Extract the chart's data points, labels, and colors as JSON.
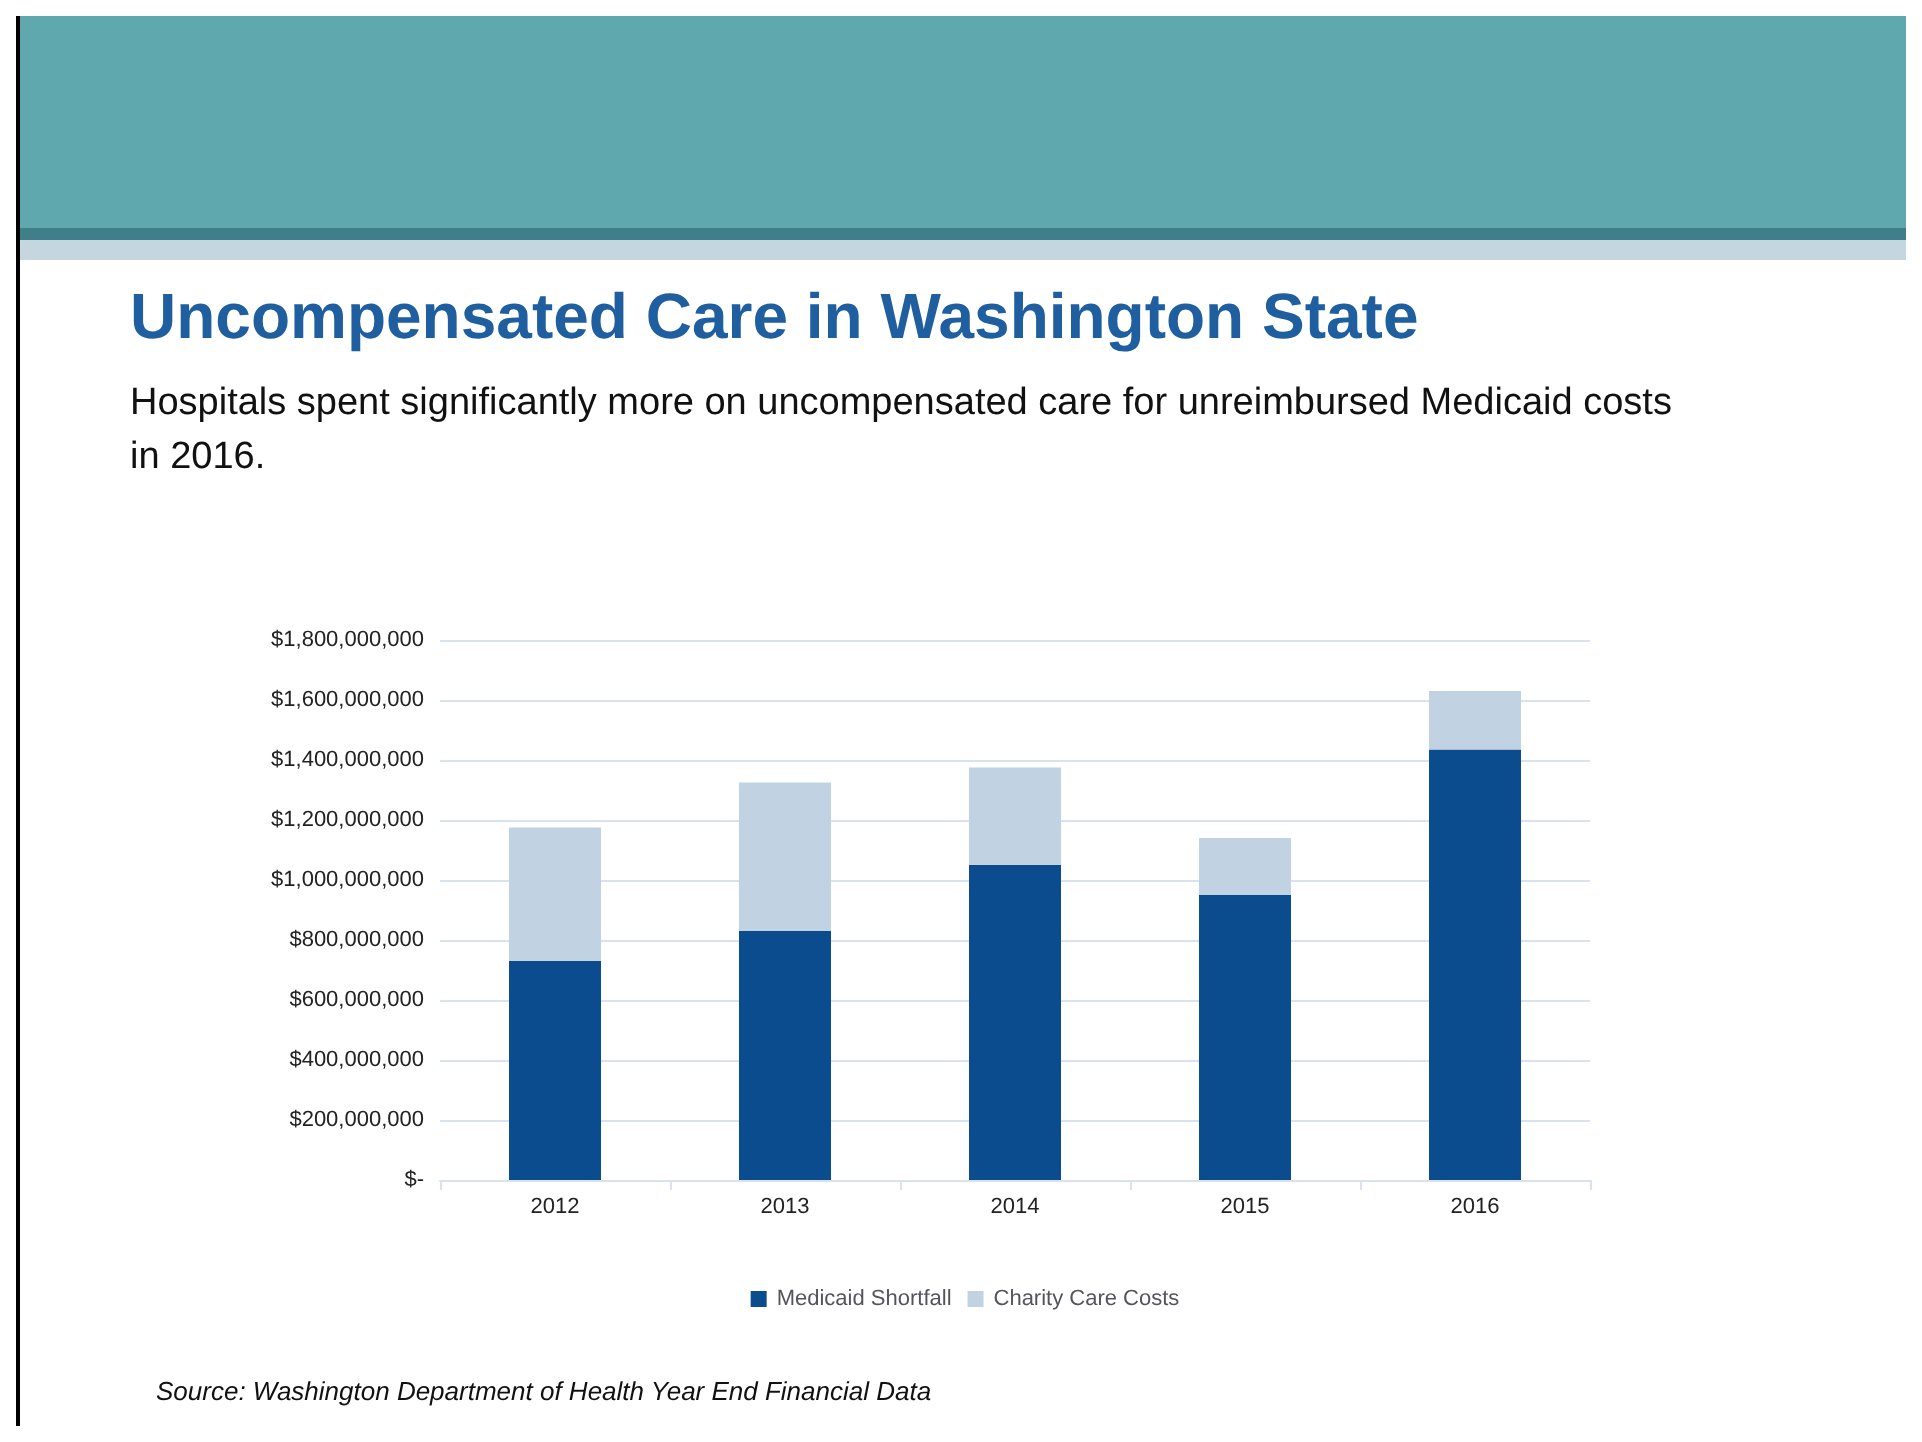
{
  "chart_data": {
    "type": "bar",
    "title": "Uncompensated Care in Washington State",
    "subtitle": "Hospitals spent significantly more on uncompensated care for unreimbursed Medicaid costs in 2016.",
    "categories": [
      "2012",
      "2013",
      "2014",
      "2015",
      "2016"
    ],
    "series": [
      {
        "name": "Medicaid Shortfall",
        "color": "#0b4c8f",
        "values": [
          730000000,
          830000000,
          1050000000,
          950000000,
          1435000000
        ]
      },
      {
        "name": "Charity Care Costs",
        "color": "#c1d2e3",
        "values": [
          445000000,
          495000000,
          325000000,
          190000000,
          195000000
        ]
      }
    ],
    "stacked": true,
    "ylim": [
      0,
      1800000000
    ],
    "yticks": [
      {
        "value": 0,
        "label": "$-"
      },
      {
        "value": 200000000,
        "label": "$200,000,000"
      },
      {
        "value": 400000000,
        "label": "$400,000,000"
      },
      {
        "value": 600000000,
        "label": "$600,000,000"
      },
      {
        "value": 800000000,
        "label": "$800,000,000"
      },
      {
        "value": 1000000000,
        "label": "$1,000,000,000"
      },
      {
        "value": 1200000000,
        "label": "$1,200,000,000"
      },
      {
        "value": 1400000000,
        "label": "$1,400,000,000"
      },
      {
        "value": 1600000000,
        "label": "$1,600,000,000"
      },
      {
        "value": 1800000000,
        "label": "$1,800,000,000"
      }
    ],
    "grid": "y",
    "legend": "bottom",
    "annotations": [
      "Source: Washington Department of Health Year End Financial Data"
    ]
  }
}
